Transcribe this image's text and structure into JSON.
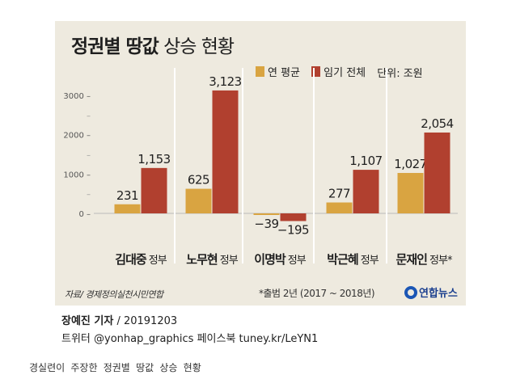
{
  "title": {
    "bold": "정권별 땅값",
    "regular": "상승 현황"
  },
  "legend": {
    "items": [
      {
        "label": "연 평균",
        "color": "#d9a441"
      },
      {
        "label": "임기 전체",
        "color": "#b1402f"
      }
    ],
    "unit": "단위: 조원"
  },
  "chart_data": {
    "type": "bar",
    "title": "정권별 땅값 상승 현황",
    "unit": "조원",
    "categories": [
      {
        "name": "김대중",
        "suffix": "정부"
      },
      {
        "name": "노무현",
        "suffix": "정부"
      },
      {
        "name": "이명박",
        "suffix": "정부"
      },
      {
        "name": "박근혜",
        "suffix": "정부"
      },
      {
        "name": "문재인",
        "suffix": "정부*"
      }
    ],
    "series": [
      {
        "name": "연 평균",
        "color": "#d9a441",
        "values": [
          231,
          625,
          -39,
          277,
          1027
        ],
        "labels": [
          "231",
          "625",
          "−39",
          "277",
          "1,027"
        ]
      },
      {
        "name": "임기 전체",
        "color": "#b1402f",
        "values": [
          1153,
          3123,
          -195,
          1107,
          2054
        ],
        "labels": [
          "1,153",
          "3,123",
          "−195",
          "1,107",
          "2,054"
        ]
      }
    ],
    "yticks": [
      {
        "value": 3000,
        "label": "3000"
      },
      {
        "value": 2000,
        "label": "2000"
      },
      {
        "value": 1000,
        "label": "1000"
      },
      {
        "value": 0,
        "label": "0"
      }
    ],
    "ylim": [
      -250,
      3300
    ],
    "grid": false
  },
  "source": "자료/ 경제정의실천시민연합",
  "footnote": "*출범 2년 (2017 ~ 2018년)",
  "logo": "연합뉴스",
  "byline": {
    "name": "장예진 기자",
    "date": " / 20191203"
  },
  "social": "트위터 @yonhap_graphics  페이스북 tuney.kr/LeYN1",
  "caption": "경실련이 주장한 정권별 땅값 상승 현황"
}
